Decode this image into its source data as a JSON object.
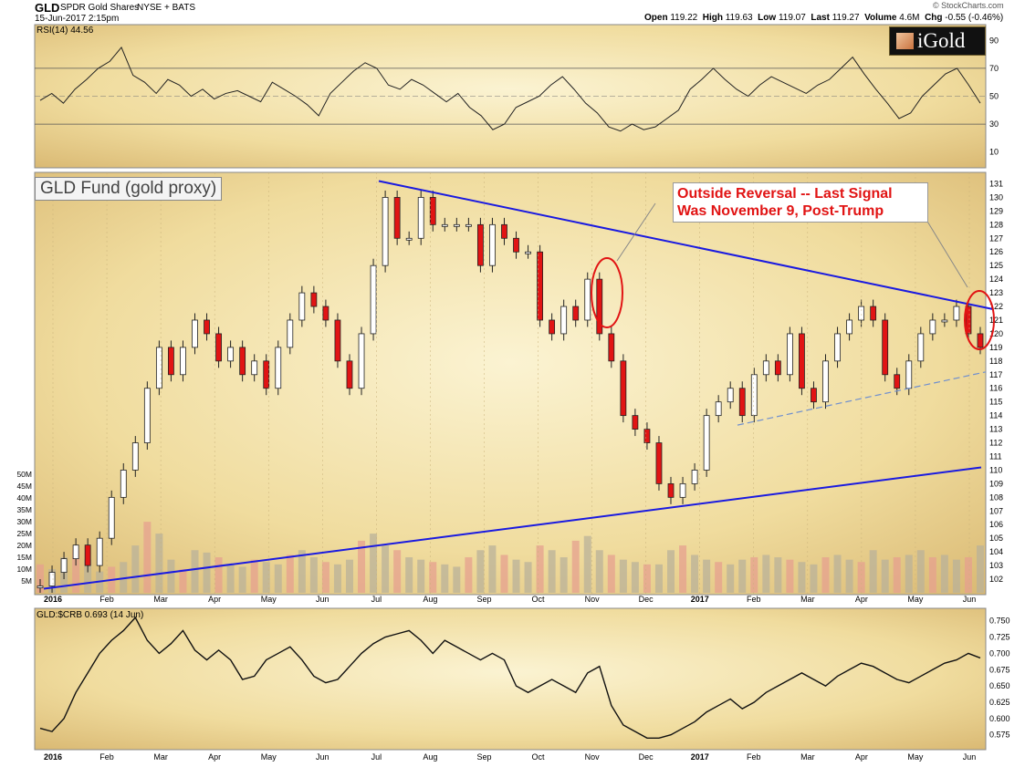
{
  "header": {
    "symbol": "GLD",
    "name": "SPDR Gold Shares",
    "exchange": "NYSE + BATS",
    "datetime": "15-Jun-2017 2:15pm",
    "source": "© StockCharts.com",
    "open_label": "Open",
    "open": "119.22",
    "high_label": "High",
    "high": "119.63",
    "low_label": "Low",
    "low": "119.07",
    "last_label": "Last",
    "last": "119.27",
    "volume_label": "Volume",
    "volume": "4.6M",
    "chg_label": "Chg",
    "chg": "-0.55 (-0.46%)"
  },
  "logo": {
    "text": "iGold"
  },
  "chart_data": {
    "type": "line",
    "x_ticks": [
      "2016",
      "Feb",
      "Mar",
      "Apr",
      "May",
      "Jun",
      "Jul",
      "Aug",
      "Sep",
      "Oct",
      "Nov",
      "Dec",
      "2017",
      "Feb",
      "Mar",
      "Apr",
      "May",
      "Jun"
    ],
    "rsi": {
      "label": "RSI(14)",
      "value": "44.56",
      "ticks": [
        90,
        70,
        50,
        30,
        10
      ],
      "levels": [
        70,
        30
      ],
      "ylim": [
        0,
        100
      ],
      "values": [
        47,
        52,
        45,
        55,
        62,
        70,
        75,
        85,
        65,
        60,
        52,
        62,
        58,
        50,
        55,
        48,
        52,
        54,
        50,
        46,
        60,
        55,
        50,
        44,
        36,
        52,
        60,
        68,
        74,
        70,
        58,
        55,
        62,
        58,
        52,
        46,
        52,
        42,
        36,
        26,
        30,
        42,
        46,
        50,
        58,
        64,
        55,
        45,
        38,
        28,
        25,
        30,
        26,
        28,
        34,
        40,
        55,
        62,
        70,
        62,
        55,
        50,
        58,
        64,
        60,
        56,
        52,
        58,
        62,
        70,
        78,
        66,
        55,
        45,
        34,
        38,
        50,
        58,
        66,
        70,
        58,
        45
      ]
    },
    "price": {
      "title": "GLD Fund (gold proxy)",
      "ticks": [
        131,
        130,
        129,
        128,
        127,
        126,
        125,
        124,
        123,
        122,
        121,
        120,
        119,
        118,
        117,
        116,
        115,
        114,
        113,
        112,
        111,
        110,
        109,
        108,
        107,
        106,
        105,
        104,
        103,
        102
      ],
      "ylim": [
        101,
        131.5
      ],
      "closes": [
        101.5,
        102.5,
        103.5,
        104.5,
        103,
        105,
        108,
        110,
        112,
        116,
        119,
        117,
        119,
        121,
        120,
        118,
        119,
        117,
        118,
        116,
        119,
        121,
        123,
        122,
        121,
        118,
        116,
        120,
        125,
        130,
        127,
        127,
        130,
        128,
        128,
        128,
        128,
        125,
        128,
        127,
        126,
        126,
        121,
        120,
        122,
        121,
        124,
        120,
        118,
        114,
        113,
        112,
        109,
        108,
        109,
        110,
        114,
        115,
        116,
        114,
        117,
        118,
        117,
        120,
        116,
        115,
        118,
        120,
        121,
        122,
        121,
        117,
        116,
        118,
        120,
        121,
        121,
        122,
        120,
        119
      ],
      "volume_ticks": [
        "50M",
        "45M",
        "40M",
        "35M",
        "30M",
        "25M",
        "20M",
        "15M",
        "10M",
        "5M"
      ],
      "volume_max": 52,
      "volumes": [
        12,
        10,
        15,
        18,
        14,
        9,
        11,
        13,
        20,
        30,
        25,
        14,
        10,
        18,
        17,
        15,
        12,
        11,
        14,
        13,
        12,
        16,
        18,
        15,
        13,
        12,
        14,
        22,
        25,
        20,
        18,
        15,
        14,
        13,
        12,
        11,
        15,
        18,
        20,
        16,
        14,
        13,
        20,
        18,
        15,
        22,
        24,
        18,
        16,
        14,
        13,
        12,
        12,
        18,
        20,
        16,
        14,
        13,
        12,
        14,
        15,
        16,
        15,
        14,
        13,
        12,
        15,
        16,
        14,
        13,
        18,
        14,
        15,
        16,
        18,
        15,
        16,
        14,
        15,
        20
      ]
    },
    "ratio": {
      "label": "GLD:$CRB",
      "value": "0.693 (14 Jun)",
      "ticks": [
        "0.750",
        "0.725",
        "0.700",
        "0.675",
        "0.650",
        "0.625",
        "0.600",
        "0.575"
      ],
      "ylim": [
        0.555,
        0.765
      ],
      "values": [
        0.585,
        0.58,
        0.6,
        0.64,
        0.67,
        0.7,
        0.72,
        0.735,
        0.755,
        0.72,
        0.7,
        0.715,
        0.735,
        0.705,
        0.69,
        0.705,
        0.69,
        0.66,
        0.665,
        0.69,
        0.7,
        0.71,
        0.69,
        0.665,
        0.655,
        0.66,
        0.68,
        0.7,
        0.715,
        0.725,
        0.73,
        0.735,
        0.72,
        0.7,
        0.72,
        0.71,
        0.7,
        0.69,
        0.7,
        0.69,
        0.65,
        0.64,
        0.65,
        0.66,
        0.65,
        0.64,
        0.67,
        0.68,
        0.62,
        0.59,
        0.58,
        0.57,
        0.57,
        0.575,
        0.585,
        0.595,
        0.61,
        0.62,
        0.63,
        0.615,
        0.625,
        0.64,
        0.65,
        0.66,
        0.67,
        0.66,
        0.65,
        0.665,
        0.675,
        0.685,
        0.68,
        0.67,
        0.66,
        0.655,
        0.665,
        0.675,
        0.685,
        0.69,
        0.7,
        0.693
      ]
    },
    "annotation": "Outside Reversal -- Last Signal Was November 9, Post-Trump"
  }
}
